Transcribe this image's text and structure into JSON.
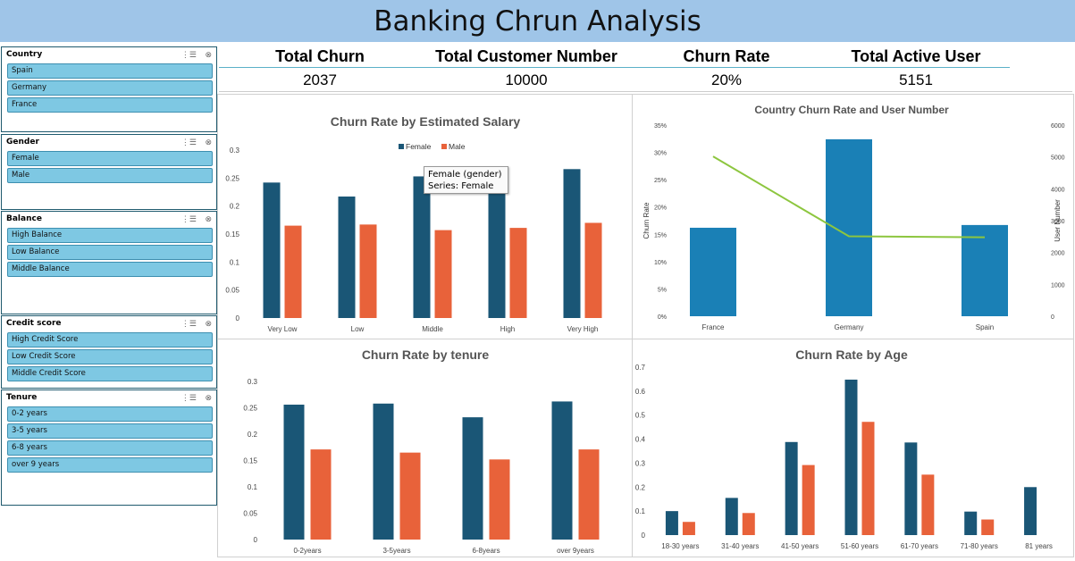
{
  "title": "Banking Chrun Analysis",
  "kpis": [
    {
      "label": "Total Churn",
      "value": "2037"
    },
    {
      "label": "Total Customer Number",
      "value": "10000"
    },
    {
      "label": "Churn Rate",
      "value": "20%"
    },
    {
      "label": "Total Active User",
      "value": "5151"
    }
  ],
  "slicers": [
    {
      "title": "Country",
      "items": [
        "Spain",
        "Germany",
        "France"
      ]
    },
    {
      "title": "Gender",
      "items": [
        "Female",
        "Male"
      ]
    },
    {
      "title": "Balance",
      "items": [
        "High Balance",
        "Low Balance",
        "Middle Balance"
      ]
    },
    {
      "title": "Credit score",
      "items": [
        "High Credit Score",
        "Low Credit Score",
        "Middle Credit Score"
      ]
    },
    {
      "title": "Tenure",
      "items": [
        "0-2 years",
        "3-5 years",
        "6-8 years",
        "over 9 years"
      ]
    }
  ],
  "slicer_icons": {
    "multi_select": "multi-select-icon",
    "clear_filter": "clear-filter-icon",
    "multi_glyph": "⋮☰",
    "clear_glyph": "⊗"
  },
  "tooltip": {
    "line1": "Female (gender)",
    "line2": "Series: Female"
  },
  "colors": {
    "female": "#1a5676",
    "male": "#e8623a",
    "bar_single": "#1a80b6",
    "line": "#8dc63f"
  },
  "chart_data": [
    {
      "type": "bar",
      "title": "Churn Rate by Estimated Salary",
      "categories": [
        "Very Low",
        "Low",
        "Middle",
        "High",
        "Very High"
      ],
      "series": [
        {
          "name": "Female",
          "values": [
            0.242,
            0.217,
            0.253,
            0.232,
            0.266
          ]
        },
        {
          "name": "Male",
          "values": [
            0.165,
            0.167,
            0.157,
            0.161,
            0.17
          ]
        }
      ],
      "yticks": [
        "0",
        "0.05",
        "0.1",
        "0.15",
        "0.2",
        "0.25",
        "0.3"
      ],
      "ylim": [
        0,
        0.3
      ],
      "legend": "top"
    },
    {
      "type": "bar",
      "title": "Country Churn Rate and User Number",
      "categories": [
        "France",
        "Germany",
        "Spain"
      ],
      "series": [
        {
          "name": "Churn Rate",
          "values": [
            0.162,
            0.324,
            0.167
          ]
        },
        {
          "name": "User Number",
          "values": [
            5014,
            2509,
            2477
          ]
        }
      ],
      "ylabel": "Churn Rate",
      "y2label": "User Number",
      "yticks": [
        "0%",
        "5%",
        "10%",
        "15%",
        "20%",
        "25%",
        "30%",
        "35%"
      ],
      "y2ticks": [
        "0",
        "1000",
        "2000",
        "3000",
        "4000",
        "5000",
        "6000"
      ],
      "ylim": [
        0,
        0.35
      ],
      "y2lim": [
        0,
        6000
      ]
    },
    {
      "type": "bar",
      "title": "Churn Rate by tenure",
      "categories": [
        "0-2years",
        "3-5years",
        "6-8years",
        "over 9years"
      ],
      "series": [
        {
          "name": "Female",
          "values": [
            0.256,
            0.258,
            0.232,
            0.262
          ]
        },
        {
          "name": "Male",
          "values": [
            0.171,
            0.165,
            0.152,
            0.171
          ]
        }
      ],
      "yticks": [
        "0",
        "0.05",
        "0.1",
        "0.15",
        "0.2",
        "0.25",
        "0.3"
      ],
      "ylim": [
        0,
        0.3
      ]
    },
    {
      "type": "bar",
      "title": "Churn Rate by Age",
      "categories": [
        "18-30 years",
        "31-40 years",
        "41-50 years",
        "51-60 years",
        "61-70 years",
        "71-80 years",
        "81 years"
      ],
      "series": [
        {
          "name": "Female",
          "values": [
            0.1,
            0.155,
            0.388,
            0.648,
            0.386,
            0.098,
            0.2
          ]
        },
        {
          "name": "Male",
          "values": [
            0.055,
            0.092,
            0.292,
            0.472,
            0.252,
            0.065,
            0.0
          ]
        }
      ],
      "yticks": [
        "0",
        "0.1",
        "0.2",
        "0.3",
        "0.4",
        "0.5",
        "0.6",
        "0.7"
      ],
      "ylim": [
        0,
        0.7
      ]
    }
  ]
}
